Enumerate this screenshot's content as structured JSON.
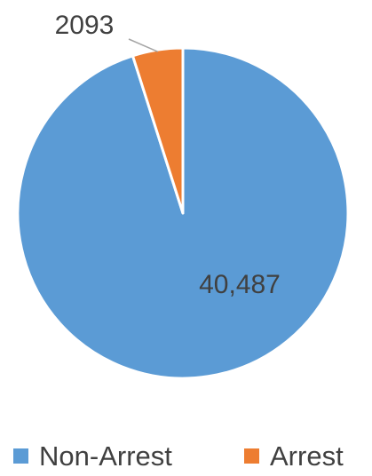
{
  "chart_data": {
    "type": "pie",
    "series": [
      {
        "categories": [
          "Non-Arrest",
          "Arrest"
        ],
        "values": [
          40487,
          2093
        ]
      }
    ],
    "data_labels": [
      "40,487",
      "2093"
    ],
    "legend": {
      "position": "bottom",
      "entries": [
        "Non-Arrest",
        "Arrest"
      ]
    },
    "colors": [
      "#5B9BD5",
      "#ED7D31"
    ],
    "start_angle_deg": 0,
    "direction": "clockwise"
  }
}
